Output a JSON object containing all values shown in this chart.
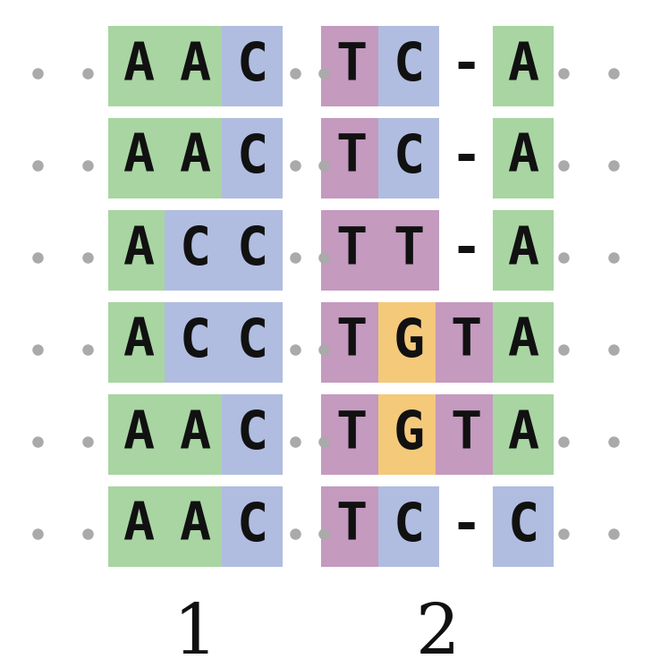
{
  "sequences": [
    {
      "left": "AAC",
      "right": "TC-A"
    },
    {
      "left": "AAC",
      "right": "TC-A"
    },
    {
      "left": "ACC",
      "right": "TT-A"
    },
    {
      "left": "ACC",
      "right": "TGTA"
    },
    {
      "left": "AAC",
      "right": "TGTA"
    },
    {
      "left": "AAC",
      "right": "TC-C"
    }
  ],
  "left_bg_colors": [
    [
      "#a8d5a2",
      "#a8d5a2",
      "#b0bde0"
    ],
    [
      "#a8d5a2",
      "#a8d5a2",
      "#b0bde0"
    ],
    [
      "#a8d5a2",
      "#b0bde0",
      "#b0bde0"
    ],
    [
      "#a8d5a2",
      "#b0bde0",
      "#b0bde0"
    ],
    [
      "#a8d5a2",
      "#a8d5a2",
      "#b0bde0"
    ],
    [
      "#a8d5a2",
      "#a8d5a2",
      "#b0bde0"
    ]
  ],
  "right_bg_colors": [
    [
      "#c49abf",
      "#b0bde0",
      null,
      "#a8d5a2"
    ],
    [
      "#c49abf",
      "#b0bde0",
      null,
      "#a8d5a2"
    ],
    [
      "#c49abf",
      "#c49abf",
      null,
      "#a8d5a2"
    ],
    [
      "#c49abf",
      "#f5c97a",
      "#c49abf",
      "#a8d5a2"
    ],
    [
      "#c49abf",
      "#f5c97a",
      "#c49abf",
      "#a8d5a2"
    ],
    [
      "#c49abf",
      "#b0bde0",
      null,
      "#b0bde0"
    ]
  ],
  "dot_color": "#aaaaaa",
  "text_color": "#111111",
  "bg_color": "#ffffff",
  "font_size": 42,
  "label_font_size": 56,
  "figsize": [
    7.48,
    7.46
  ],
  "dpi": 100
}
